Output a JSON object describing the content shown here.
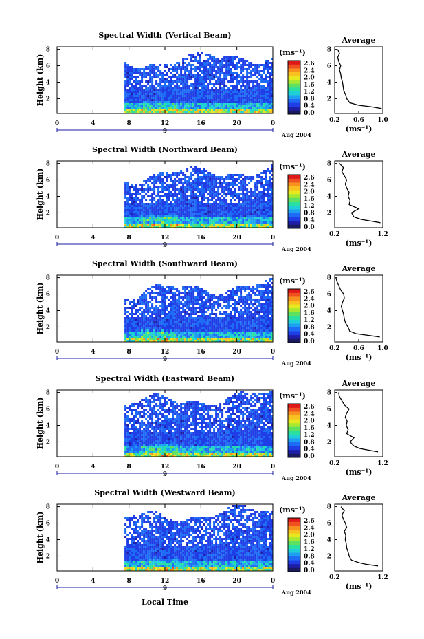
{
  "colorbar": {
    "unit_label": "(ms⁻¹)",
    "ticks": [
      "2.6",
      "2.4",
      "2.0",
      "1.6",
      "1.2",
      "0.8",
      "0.4",
      "0.0"
    ],
    "colors": [
      "#1a1a60",
      "#1e1ea8",
      "#1f3ee6",
      "#1e6cf5",
      "#1ea0f0",
      "#1ecfd8",
      "#2ae0a0",
      "#5fe060",
      "#a8e830",
      "#e8e820",
      "#f8c020",
      "#f89020",
      "#f05020",
      "#e01818"
    ]
  },
  "date_label": "Aug 2004",
  "day_label": "9",
  "xlabel": "Local Time",
  "chart_data": [
    {
      "type": "heatmap",
      "title": "Spectral Width (Vertical Beam)",
      "ylabel": "Height (km)",
      "x_ticks": [
        "0",
        "4",
        "8",
        "12",
        "16",
        "20",
        "0"
      ],
      "y_ticks": [
        "8",
        "6",
        "4",
        "2"
      ],
      "xlim": [
        0,
        24
      ],
      "ylim": [
        0.2,
        8.3
      ],
      "data_start_hour": 7.5,
      "top_height_km": 6.5,
      "average_profile": {
        "title": "Average",
        "xlabel": "(ms⁻¹)",
        "x_ticks": [
          "0.2",
          "0.6",
          "1.0"
        ],
        "xlim": [
          0.2,
          1.0
        ],
        "y_ticks": [
          "8",
          "6",
          "4",
          "2"
        ],
        "heights": [
          0.8,
          1.0,
          1.2,
          1.5,
          2.0,
          2.5,
          3.0,
          3.5,
          4.0,
          4.5,
          5.0,
          5.5,
          6.0,
          6.5,
          7.0,
          7.5,
          8.0
        ],
        "values": [
          0.98,
          0.82,
          0.6,
          0.45,
          0.4,
          0.38,
          0.35,
          0.34,
          0.33,
          0.31,
          0.3,
          0.28,
          0.3,
          0.27,
          0.25,
          0.28,
          0.25
        ]
      }
    },
    {
      "type": "heatmap",
      "title": "Spectral Width (Northward Beam)",
      "ylabel": "Height (km)",
      "x_ticks": [
        "0",
        "4",
        "8",
        "12",
        "16",
        "20",
        "0"
      ],
      "y_ticks": [
        "8",
        "6",
        "4",
        "2"
      ],
      "xlim": [
        0,
        24
      ],
      "ylim": [
        0.2,
        8.3
      ],
      "data_start_hour": 7.5,
      "top_height_km": 6.5,
      "average_profile": {
        "title": "Average",
        "xlabel": "(ms⁻¹)",
        "x_ticks": [
          "0.2",
          "1.2"
        ],
        "xlim": [
          0.2,
          1.2
        ],
        "y_ticks": [
          "8",
          "6",
          "4",
          "2"
        ],
        "heights": [
          0.8,
          1.0,
          1.2,
          1.5,
          2.0,
          2.5,
          3.0,
          3.5,
          4.0,
          4.5,
          5.0,
          5.5,
          6.0,
          6.5,
          7.0,
          7.5,
          8.0
        ],
        "values": [
          1.15,
          0.95,
          0.75,
          0.6,
          0.55,
          0.7,
          0.5,
          0.52,
          0.48,
          0.5,
          0.45,
          0.42,
          0.45,
          0.4,
          0.35,
          0.38,
          0.3
        ]
      }
    },
    {
      "type": "heatmap",
      "title": "Spectral Width (Southward Beam)",
      "ylabel": "Height (km)",
      "x_ticks": [
        "0",
        "4",
        "8",
        "12",
        "16",
        "20",
        "0"
      ],
      "y_ticks": [
        "8",
        "6",
        "4",
        "2"
      ],
      "xlim": [
        0,
        24
      ],
      "ylim": [
        0.2,
        8.3
      ],
      "data_start_hour": 7.5,
      "top_height_km": 6.3,
      "average_profile": {
        "title": "Average",
        "xlabel": "(ms⁻¹)",
        "x_ticks": [
          "0.2",
          "0.6",
          "1.0"
        ],
        "xlim": [
          0.2,
          1.0
        ],
        "y_ticks": [
          "8",
          "6",
          "4",
          "2"
        ],
        "heights": [
          0.8,
          1.0,
          1.2,
          1.5,
          2.0,
          2.5,
          3.0,
          3.5,
          4.0,
          4.5,
          5.0,
          5.5,
          6.0,
          6.5,
          7.0,
          7.5,
          8.0
        ],
        "values": [
          0.95,
          0.75,
          0.55,
          0.45,
          0.42,
          0.38,
          0.36,
          0.35,
          0.33,
          0.31,
          0.33,
          0.36,
          0.35,
          0.3,
          0.27,
          0.24,
          0.22
        ]
      }
    },
    {
      "type": "heatmap",
      "title": "Spectral Width (Eastward Beam)",
      "ylabel": "Height (km)",
      "x_ticks": [
        "0",
        "4",
        "8",
        "12",
        "16",
        "20",
        "0"
      ],
      "y_ticks": [
        "8",
        "6",
        "4",
        "2"
      ],
      "xlim": [
        0,
        24
      ],
      "ylim": [
        0.2,
        8.3
      ],
      "data_start_hour": 7.5,
      "top_height_km": 6.8,
      "average_profile": {
        "title": "Average",
        "xlabel": "(ms⁻¹)",
        "x_ticks": [
          "0.2",
          "1.2"
        ],
        "xlim": [
          0.2,
          1.2
        ],
        "y_ticks": [
          "8",
          "6",
          "4",
          "2"
        ],
        "heights": [
          0.8,
          1.0,
          1.2,
          1.5,
          2.0,
          2.5,
          3.0,
          3.5,
          4.0,
          4.5,
          5.0,
          5.5,
          6.0,
          6.5,
          7.0,
          7.5,
          8.0
        ],
        "values": [
          1.1,
          0.9,
          0.72,
          0.6,
          0.52,
          0.6,
          0.45,
          0.48,
          0.44,
          0.46,
          0.42,
          0.45,
          0.5,
          0.4,
          0.35,
          0.3,
          0.28
        ]
      }
    },
    {
      "type": "heatmap",
      "title": "Spectral Width (Westward Beam)",
      "ylabel": "Height (km)",
      "x_ticks": [
        "0",
        "4",
        "8",
        "12",
        "16",
        "20",
        "0"
      ],
      "y_ticks": [
        "8",
        "6",
        "4",
        "2"
      ],
      "xlim": [
        0,
        24
      ],
      "ylim": [
        0.2,
        8.3
      ],
      "data_start_hour": 7.5,
      "top_height_km": 6.7,
      "average_profile": {
        "title": "Average",
        "xlabel": "(ms⁻¹)",
        "x_ticks": [
          "0.2",
          "1.2"
        ],
        "xlim": [
          0.2,
          1.2
        ],
        "y_ticks": [
          "8",
          "6",
          "4",
          "2"
        ],
        "heights": [
          0.8,
          1.0,
          1.2,
          1.5,
          2.0,
          2.5,
          3.0,
          3.5,
          4.0,
          4.5,
          5.0,
          5.5,
          6.0,
          6.5,
          7.0,
          7.5,
          8.0
        ],
        "values": [
          1.1,
          0.85,
          0.7,
          0.55,
          0.5,
          0.48,
          0.45,
          0.44,
          0.42,
          0.43,
          0.4,
          0.45,
          0.42,
          0.38,
          0.35,
          0.4,
          0.33
        ]
      }
    }
  ]
}
